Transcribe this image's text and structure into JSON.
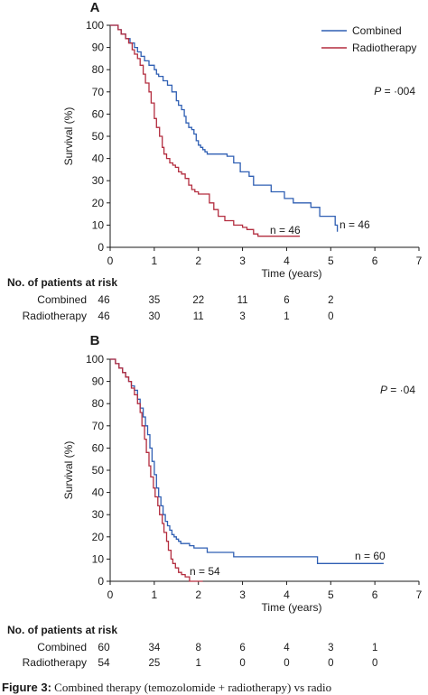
{
  "figure_caption": {
    "label": "Figure 3:",
    "text": "Combined therapy (temozolomide + radiotherapy) vs radio"
  },
  "colors": {
    "combined": "#2f5fb3",
    "radiotherapy": "#b32d3f",
    "axis": "#1a1a1a"
  },
  "chart_data": [
    {
      "type": "line",
      "panel_label": "A",
      "xlabel": "Time (years)",
      "ylabel": "Survival (%)",
      "xlim": [
        0,
        7
      ],
      "ylim": [
        0,
        100
      ],
      "xticks": [
        "0",
        "1",
        "2",
        "3",
        "4",
        "5",
        "6",
        "7"
      ],
      "yticks": [
        "0",
        "10",
        "20",
        "30",
        "40",
        "50",
        "60",
        "70",
        "80",
        "90",
        "100"
      ],
      "p_value": {
        "label": "P",
        "text": " = ·004"
      },
      "legend": [
        "Combined",
        "Radiotherapy"
      ],
      "legend_position": "top-right",
      "grid": false,
      "series": [
        {
          "name": "Combined",
          "color_key": "combined",
          "n_label": "n = 46",
          "x": [
            0,
            0.18,
            0.25,
            0.35,
            0.45,
            0.55,
            0.62,
            0.7,
            0.78,
            0.88,
            1.0,
            1.05,
            1.1,
            1.2,
            1.3,
            1.4,
            1.5,
            1.55,
            1.62,
            1.68,
            1.72,
            1.78,
            1.85,
            1.9,
            1.95,
            2.0,
            2.05,
            2.1,
            2.15,
            2.2,
            2.3,
            2.5,
            2.65,
            2.8,
            2.95,
            3.15,
            3.25,
            3.45,
            3.55,
            3.65,
            3.95,
            4.15,
            4.55,
            4.75,
            5.1,
            5.15
          ],
          "y": [
            100,
            98,
            96,
            94,
            92,
            90,
            88,
            86,
            84,
            82,
            80,
            78,
            77,
            75,
            73,
            70,
            66,
            64,
            62,
            59,
            56,
            54,
            53,
            51,
            48,
            46,
            45,
            44,
            43,
            42,
            42,
            42,
            41,
            38,
            34,
            32,
            28,
            28,
            28,
            25,
            22,
            20,
            18,
            14,
            10,
            7
          ]
        },
        {
          "name": "Radiotherapy",
          "color_key": "radiotherapy",
          "n_label": "n = 46",
          "x": [
            0,
            0.18,
            0.25,
            0.35,
            0.42,
            0.5,
            0.55,
            0.62,
            0.68,
            0.75,
            0.8,
            0.88,
            0.93,
            1.0,
            1.05,
            1.12,
            1.18,
            1.22,
            1.28,
            1.35,
            1.42,
            1.48,
            1.55,
            1.62,
            1.7,
            1.78,
            1.85,
            1.92,
            2.0,
            2.05,
            2.1,
            2.25,
            2.35,
            2.45,
            2.6,
            2.8,
            3.0,
            3.1,
            3.25,
            3.35,
            3.55,
            3.75,
            4.3
          ],
          "y": [
            100,
            98,
            96,
            94,
            92,
            89,
            87,
            85,
            82,
            78,
            74,
            70,
            65,
            58,
            54,
            50,
            45,
            42,
            40,
            38,
            37,
            36,
            34,
            33,
            31,
            28,
            26,
            25,
            24,
            24,
            24,
            20,
            17,
            14,
            12,
            10,
            9,
            8,
            6,
            5,
            5,
            5,
            5
          ]
        }
      ],
      "risk_table": {
        "title": "No. of patients at risk",
        "rows": [
          {
            "label": "Combined",
            "values": [
              "46",
              "35",
              "22",
              "11",
              "6",
              "2"
            ]
          },
          {
            "label": "Radiotherapy",
            "values": [
              "46",
              "30",
              "11",
              "3",
              "1",
              "0"
            ]
          }
        ]
      }
    },
    {
      "type": "line",
      "panel_label": "B",
      "xlabel": "Time (years)",
      "ylabel": "Survival (%)",
      "xlim": [
        0,
        7
      ],
      "ylim": [
        0,
        100
      ],
      "xticks": [
        "0",
        "1",
        "2",
        "3",
        "4",
        "5",
        "6",
        "7"
      ],
      "yticks": [
        "0",
        "10",
        "20",
        "30",
        "40",
        "50",
        "60",
        "70",
        "80",
        "90",
        "100"
      ],
      "p_value": {
        "label": "P",
        "text": " = ·04"
      },
      "grid": false,
      "series": [
        {
          "name": "Combined",
          "color_key": "combined",
          "n_label": "n = 60",
          "x": [
            0,
            0.12,
            0.2,
            0.28,
            0.35,
            0.42,
            0.48,
            0.55,
            0.62,
            0.68,
            0.75,
            0.8,
            0.85,
            0.9,
            0.95,
            1.0,
            1.05,
            1.1,
            1.15,
            1.2,
            1.25,
            1.3,
            1.35,
            1.4,
            1.45,
            1.5,
            1.55,
            1.6,
            1.7,
            1.8,
            1.9,
            2.1,
            2.2,
            2.8,
            4.7,
            6.2
          ],
          "y": [
            100,
            98,
            96,
            94,
            92,
            90,
            88,
            86,
            82,
            78,
            74,
            70,
            66,
            60,
            54,
            48,
            42,
            38,
            34,
            30,
            27,
            25,
            23,
            21,
            20,
            19,
            18,
            17,
            17,
            16,
            15,
            15,
            13,
            11,
            8,
            8
          ]
        },
        {
          "name": "Radiotherapy",
          "color_key": "radiotherapy",
          "n_label": "n = 54",
          "x": [
            0,
            0.12,
            0.2,
            0.28,
            0.35,
            0.42,
            0.48,
            0.55,
            0.62,
            0.68,
            0.72,
            0.78,
            0.82,
            0.88,
            0.92,
            0.98,
            1.02,
            1.08,
            1.12,
            1.18,
            1.22,
            1.28,
            1.32,
            1.38,
            1.42,
            1.48,
            1.55,
            1.62,
            1.7,
            1.8,
            2.1
          ],
          "y": [
            100,
            98,
            96,
            94,
            92,
            90,
            87,
            84,
            80,
            76,
            70,
            64,
            58,
            52,
            47,
            42,
            38,
            34,
            30,
            26,
            22,
            18,
            14,
            10,
            8,
            6,
            4,
            3,
            2,
            0,
            0
          ]
        }
      ],
      "risk_table": {
        "title": "No. of patients at risk",
        "rows": [
          {
            "label": "Combined",
            "values": [
              "60",
              "34",
              "8",
              "6",
              "4",
              "3",
              "1"
            ]
          },
          {
            "label": "Radiotherapy",
            "values": [
              "54",
              "25",
              "1",
              "0",
              "0",
              "0",
              "0"
            ]
          }
        ]
      }
    }
  ]
}
